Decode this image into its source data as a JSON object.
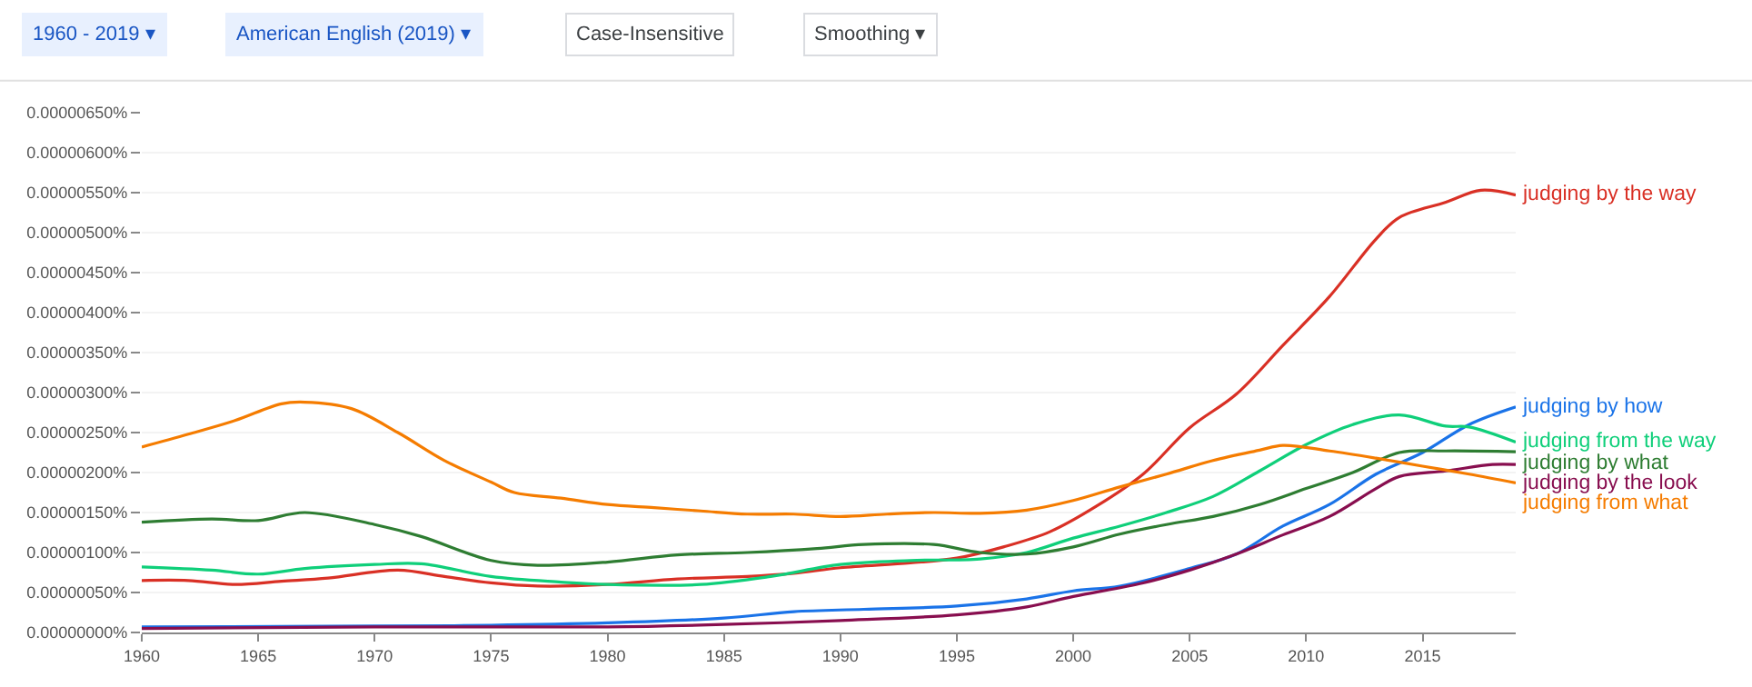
{
  "chart_data": {
    "type": "line",
    "annotations": [
      "1960 - 2019 ▾",
      "American English (2019) ▾",
      "Case-Insensitive",
      "Smoothing ▾"
    ],
    "xlim": [
      1960,
      2019
    ],
    "xticks": [
      1960,
      1965,
      1970,
      1975,
      1980,
      1985,
      1990,
      1995,
      2000,
      2005,
      2010,
      2015
    ],
    "ylim": [
      0,
      6.5e-06
    ],
    "yticks": [
      {
        "value": 0,
        "label": "0.00000000%"
      },
      {
        "value": 5e-07,
        "label": "0.00000050%"
      },
      {
        "value": 1e-06,
        "label": "0.00000100%"
      },
      {
        "value": 1.5e-06,
        "label": "0.00000150%"
      },
      {
        "value": 2e-06,
        "label": "0.00000200%"
      },
      {
        "value": 2.5e-06,
        "label": "0.00000250%"
      },
      {
        "value": 3e-06,
        "label": "0.00000300%"
      },
      {
        "value": 3.5e-06,
        "label": "0.00000350%"
      },
      {
        "value": 4e-06,
        "label": "0.00000400%"
      },
      {
        "value": 4.5e-06,
        "label": "0.00000450%"
      },
      {
        "value": 5e-06,
        "label": "0.00000500%"
      },
      {
        "value": 5.5e-06,
        "label": "0.00000550%"
      },
      {
        "value": 6e-06,
        "label": "0.00000600%"
      },
      {
        "value": 6.5e-06,
        "label": "0.00000650%"
      }
    ],
    "grid": "y",
    "legend": false,
    "marker": "none",
    "line_style": "solid",
    "series": [
      {
        "name": "judging by the way",
        "color": "#d93025",
        "x": [
          1960,
          1962,
          1964,
          1966,
          1968,
          1971,
          1973,
          1975,
          1977,
          1980,
          1983,
          1986,
          1988,
          1990,
          1993,
          1995,
          1997,
          1999,
          2001,
          2003,
          2005,
          2007,
          2009,
          2011,
          2013,
          2014,
          2016,
          2017.5,
          2019
        ],
        "values": [
          6.5e-07,
          6.5e-07,
          6e-07,
          6.4e-07,
          6.8e-07,
          7.8e-07,
          7e-07,
          6.2e-07,
          5.8e-07,
          6e-07,
          6.7e-07,
          7e-07,
          7.4e-07,
          8.1e-07,
          8.7e-07,
          9.3e-07,
          1.07e-06,
          1.26e-06,
          1.58e-06,
          1.98e-06,
          2.56e-06,
          2.98e-06,
          3.59e-06,
          4.2e-06,
          4.92e-06,
          5.19e-06,
          5.38e-06,
          5.53e-06,
          5.47e-06
        ]
      },
      {
        "name": "judging by how",
        "color": "#1a73e8",
        "x": [
          1960,
          1970,
          1975,
          1980,
          1985,
          1988,
          1991,
          1995,
          1998,
          2000,
          2002,
          2005,
          2007,
          2009,
          2011,
          2013,
          2015,
          2017,
          2019
        ],
        "values": [
          7e-08,
          8e-08,
          9e-08,
          1.2e-07,
          1.8e-07,
          2.6e-07,
          2.9e-07,
          3.3e-07,
          4.2e-07,
          5.2e-07,
          5.8e-07,
          8e-07,
          9.8e-07,
          1.33e-06,
          1.6e-06,
          1.98e-06,
          2.25e-06,
          2.6e-06,
          2.82e-06
        ]
      },
      {
        "name": "judging from the way",
        "color": "#0fcf7a",
        "x": [
          1960,
          1963,
          1965,
          1967,
          1970,
          1972,
          1975,
          1978,
          1980,
          1984,
          1987,
          1990,
          1993,
          1996,
          1998,
          2000,
          2002,
          2004,
          2006,
          2008,
          2010,
          2012,
          2014,
          2016,
          2017,
          2019
        ],
        "values": [
          8.2e-07,
          7.8e-07,
          7.3e-07,
          8e-07,
          8.5e-07,
          8.6e-07,
          7e-07,
          6.3e-07,
          6e-07,
          6e-07,
          7e-07,
          8.5e-07,
          9e-07,
          9.2e-07,
          1e-06,
          1.18e-06,
          1.33e-06,
          1.5e-06,
          1.7e-06,
          2.02e-06,
          2.35e-06,
          2.6e-06,
          2.72e-06,
          2.58e-06,
          2.57e-06,
          2.38e-06
        ]
      },
      {
        "name": "judging by what",
        "color": "#2e7d32",
        "x": [
          1960,
          1963,
          1965,
          1967,
          1970,
          1972,
          1975,
          1977,
          1980,
          1983,
          1986,
          1989,
          1991,
          1994,
          1996,
          1998,
          2000,
          2002,
          2004,
          2006,
          2008,
          2010,
          2012,
          2014,
          2016,
          2019
        ],
        "values": [
          1.38e-06,
          1.42e-06,
          1.4e-06,
          1.5e-06,
          1.35e-06,
          1.2e-06,
          9e-07,
          8.4e-07,
          8.8e-07,
          9.7e-07,
          1e-06,
          1.05e-06,
          1.1e-06,
          1.1e-06,
          1e-06,
          9.8e-07,
          1.07e-06,
          1.23e-06,
          1.35e-06,
          1.45e-06,
          1.6e-06,
          1.8e-06,
          2e-06,
          2.25e-06,
          2.27e-06,
          2.26e-06
        ]
      },
      {
        "name": "judging by the look",
        "color": "#880e4f",
        "x": [
          1960,
          1970,
          1980,
          1985,
          1990,
          1995,
          1998,
          2000,
          2003,
          2005,
          2007,
          2009,
          2011,
          2013,
          2014,
          2016,
          2018,
          2019
        ],
        "values": [
          5e-08,
          7e-08,
          7e-08,
          1e-07,
          1.5e-07,
          2.2e-07,
          3.2e-07,
          4.5e-07,
          6.2e-07,
          7.8e-07,
          9.8e-07,
          1.22e-06,
          1.45e-06,
          1.8e-06,
          1.95e-06,
          2.02e-06,
          2.1e-06,
          2.1e-06
        ]
      },
      {
        "name": "judging from what",
        "color": "#f57c00",
        "x": [
          1960,
          1962,
          1964,
          1966,
          1967,
          1969,
          1971,
          1973,
          1975,
          1976,
          1978,
          1980,
          1982,
          1984,
          1986,
          1988,
          1990,
          1992,
          1994,
          1996,
          1998,
          2000,
          2002,
          2004,
          2006,
          2008,
          2009,
          2011,
          2013,
          2015,
          2017,
          2019
        ],
        "values": [
          2.32e-06,
          2.48e-06,
          2.65e-06,
          2.86e-06,
          2.88e-06,
          2.8e-06,
          2.5e-06,
          2.15e-06,
          1.88e-06,
          1.75e-06,
          1.68e-06,
          1.6e-06,
          1.56e-06,
          1.52e-06,
          1.48e-06,
          1.48e-06,
          1.45e-06,
          1.48e-06,
          1.5e-06,
          1.49e-06,
          1.53e-06,
          1.65e-06,
          1.82e-06,
          1.98e-06,
          2.15e-06,
          2.28e-06,
          2.34e-06,
          2.27e-06,
          2.18e-06,
          2.08e-06,
          1.98e-06,
          1.87e-06
        ]
      }
    ]
  }
}
